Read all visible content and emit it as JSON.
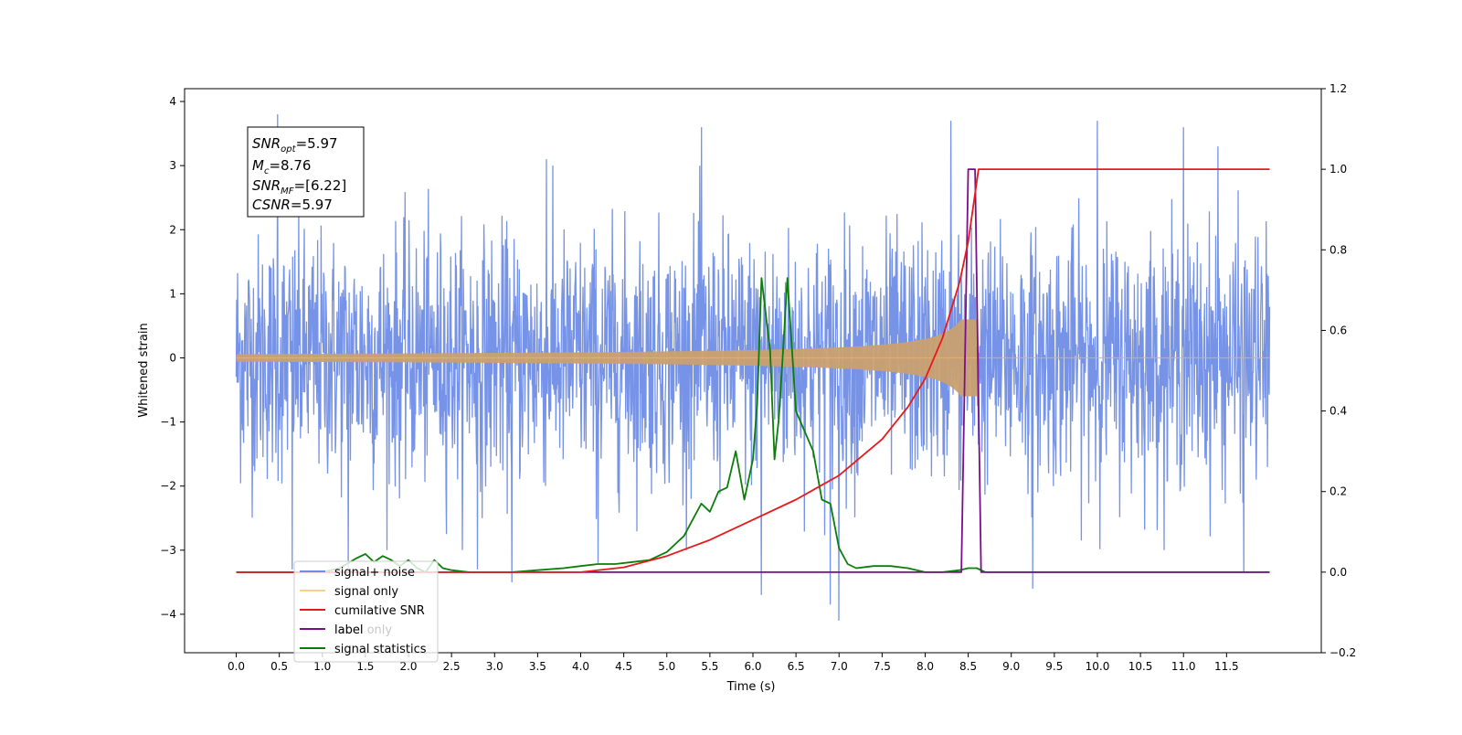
{
  "chart_data": {
    "type": "line",
    "xlabel": "Time (s)",
    "ylabel": "Whitened strain",
    "xlim": [
      -0.6,
      12.6
    ],
    "ylim": [
      -4.6,
      4.2
    ],
    "y2lim": [
      -0.2,
      1.2
    ],
    "xticks": [
      "0.0",
      "0.5",
      "1.0",
      "1.5",
      "2.0",
      "2.5",
      "3.0",
      "3.5",
      "4.0",
      "4.5",
      "5.0",
      "5.5",
      "6.0",
      "6.5",
      "7.0",
      "7.5",
      "8.0",
      "8.5",
      "9.0",
      "9.5",
      "10.0",
      "10.5",
      "11.0",
      "11.5"
    ],
    "yticks": [
      "4",
      "3",
      "2",
      "1",
      "0",
      "−1",
      "−2",
      "−3",
      "−4"
    ],
    "y2ticks": [
      "1.2",
      "1.0",
      "0.8",
      "0.6",
      "0.4",
      "0.2",
      "0.0",
      "−0.2"
    ],
    "annotation": {
      "snr_opt": {
        "base": "SNR",
        "sub": "opt",
        "value": "=5.97"
      },
      "mc": {
        "base": "M",
        "sub": "c",
        "value": "=8.76"
      },
      "snr_mf": {
        "base": "SNR",
        "sub": "MF",
        "value": "=[6.22]"
      },
      "csnr": {
        "base": "CSNR",
        "value": "=5.97"
      }
    },
    "legend": {
      "placement": "lower-left",
      "entries": [
        "signal+ noise",
        "signal only",
        "cumilative SNR",
        "label",
        "signal statistics"
      ],
      "overlapped_text": "label only"
    },
    "series": [
      {
        "name": "signal+ noise",
        "axis": "left",
        "color": "#6f8de6",
        "description_stats": {
          "x_start": 0.0,
          "x_end": 12.0,
          "typical_amplitude": 1.9,
          "spikes": [
            [
              0.48,
              3.8
            ],
            [
              0.65,
              -3.3
            ],
            [
              2.8,
              -3.3
            ],
            [
              3.2,
              -3.5
            ],
            [
              4.2,
              -3.2
            ],
            [
              6.1,
              -3.7
            ],
            [
              6.9,
              -3.85
            ],
            [
              7.0,
              -4.1
            ],
            [
              8.3,
              3.7
            ],
            [
              9.25,
              -3.6
            ],
            [
              10.0,
              3.7
            ],
            [
              11.0,
              3.6
            ],
            [
              11.4,
              3.3
            ],
            [
              11.7,
              -3.35
            ],
            [
              1.3,
              -3.3
            ],
            [
              5.4,
              3.6
            ],
            [
              3.6,
              3.1
            ]
          ]
        }
      },
      {
        "name": "signal only",
        "axis": "left",
        "color": "#f5b041",
        "chirp": {
          "start": 0.0,
          "merger": 8.6,
          "peak_amplitude": 0.6,
          "after_merger": 0.0
        }
      },
      {
        "name": "cumilative SNR",
        "axis": "right",
        "color": "#e8191a",
        "x": [
          0.0,
          4.0,
          4.5,
          5.0,
          5.5,
          6.0,
          6.5,
          7.0,
          7.5,
          7.8,
          8.0,
          8.2,
          8.4,
          8.5,
          8.6,
          8.62,
          12.0
        ],
        "y": [
          0.0,
          0.0,
          0.012,
          0.04,
          0.08,
          0.13,
          0.18,
          0.24,
          0.33,
          0.41,
          0.48,
          0.58,
          0.72,
          0.82,
          0.97,
          1.0,
          1.0
        ]
      },
      {
        "name": "label",
        "axis": "right",
        "color": "#7b0f8a",
        "x": [
          0.0,
          8.42,
          8.5,
          8.58,
          8.65,
          12.0
        ],
        "y": [
          0.0,
          0.0,
          1.0,
          1.0,
          0.0,
          0.0
        ]
      },
      {
        "name": "signal statistics",
        "axis": "right",
        "color": "#0a7d0a",
        "x": [
          0.0,
          0.5,
          1.0,
          1.2,
          1.4,
          1.5,
          1.6,
          1.7,
          1.8,
          1.9,
          2.0,
          2.1,
          2.2,
          2.3,
          2.4,
          2.5,
          2.7,
          3.0,
          3.2,
          3.5,
          3.8,
          4.0,
          4.2,
          4.4,
          4.6,
          4.8,
          5.0,
          5.1,
          5.2,
          5.3,
          5.4,
          5.5,
          5.6,
          5.7,
          5.8,
          5.9,
          6.0,
          6.05,
          6.1,
          6.2,
          6.25,
          6.3,
          6.35,
          6.4,
          6.5,
          6.6,
          6.7,
          6.8,
          6.9,
          7.0,
          7.1,
          7.2,
          7.4,
          7.6,
          7.8,
          8.0,
          8.2,
          8.4,
          8.5,
          8.6,
          8.7,
          9.0,
          9.5,
          10.0,
          11.0,
          12.0
        ],
        "y": [
          0.0,
          0.0,
          0.0,
          0.01,
          0.035,
          0.045,
          0.025,
          0.04,
          0.03,
          0.015,
          0.03,
          0.01,
          0.0,
          0.03,
          0.01,
          0.005,
          0.0,
          0.0,
          0.0,
          0.005,
          0.01,
          0.015,
          0.02,
          0.02,
          0.025,
          0.03,
          0.05,
          0.07,
          0.09,
          0.13,
          0.17,
          0.15,
          0.2,
          0.21,
          0.3,
          0.18,
          0.28,
          0.42,
          0.73,
          0.55,
          0.28,
          0.38,
          0.55,
          0.73,
          0.4,
          0.35,
          0.3,
          0.18,
          0.17,
          0.06,
          0.02,
          0.01,
          0.015,
          0.015,
          0.01,
          0.0,
          0.0,
          0.005,
          0.01,
          0.01,
          0.0,
          0.0,
          0.0,
          0.0,
          0.0,
          0.0
        ]
      }
    ]
  }
}
